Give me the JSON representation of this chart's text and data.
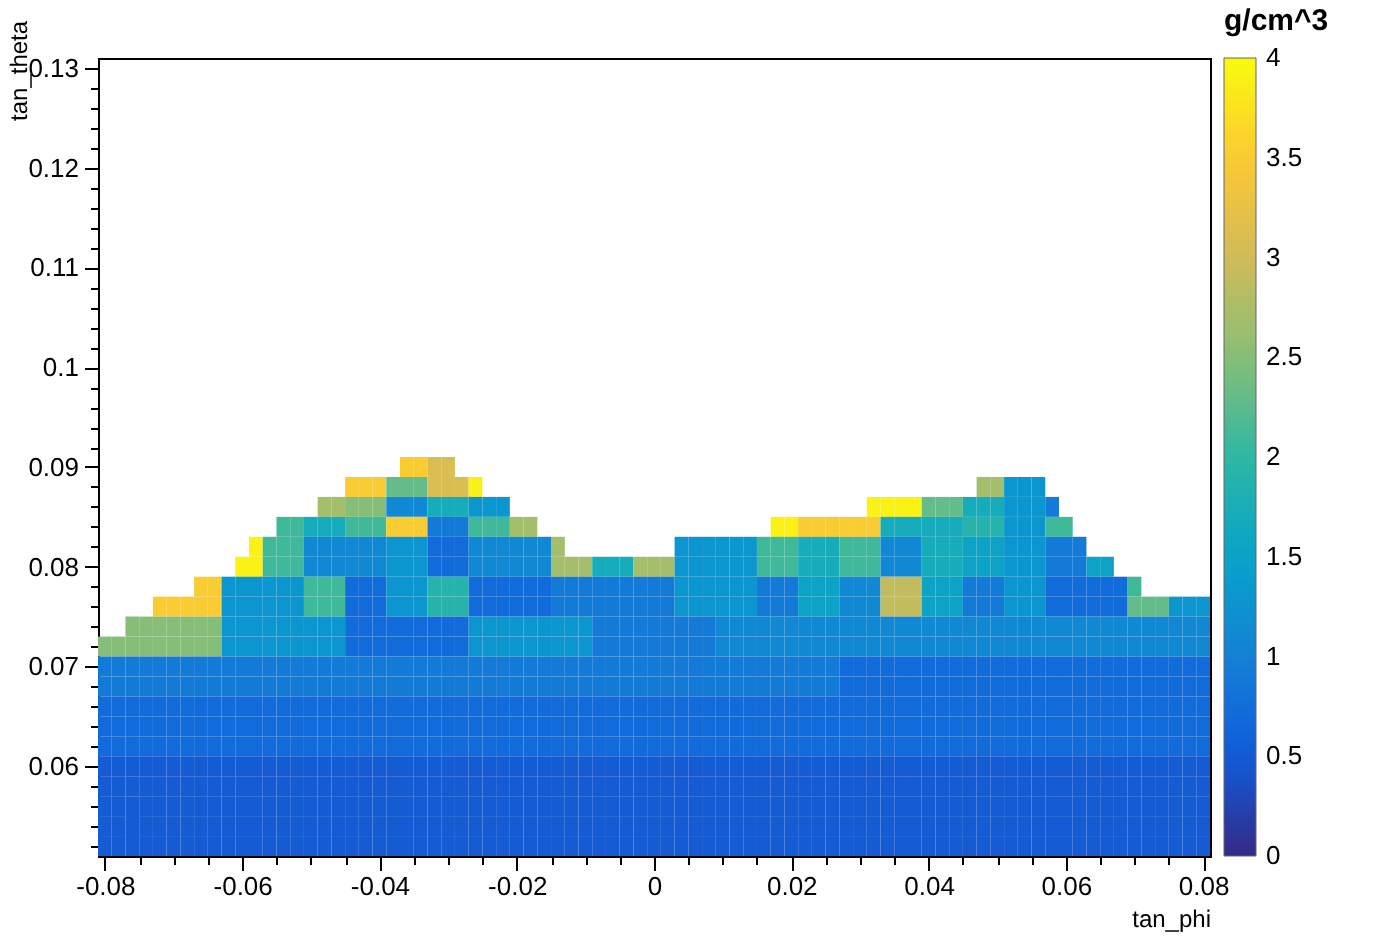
{
  "chart_data": {
    "type": "heatmap",
    "xlabel": "tan_phi",
    "ylabel": "tan_theta",
    "clabel": "g/cm^3",
    "xlim": [
      -0.081,
      0.081
    ],
    "ylim": [
      0.051,
      0.131
    ],
    "clim": [
      0,
      4
    ],
    "xticks": [
      -0.08,
      {
        "value": -0.075,
        "label": null
      },
      {
        "value": -0.07,
        "label": null
      },
      {
        "value": -0.065,
        "label": null
      },
      -0.06,
      {
        "value": -0.055,
        "label": null
      },
      {
        "value": -0.05,
        "label": null
      },
      {
        "value": -0.045,
        "label": null
      },
      -0.04,
      {
        "value": -0.035,
        "label": null
      },
      {
        "value": -0.03,
        "label": null
      },
      {
        "value": -0.025,
        "label": null
      },
      -0.02,
      {
        "value": -0.015,
        "label": null
      },
      {
        "value": -0.01,
        "label": null
      },
      {
        "value": -0.005,
        "label": null
      },
      0,
      {
        "value": 0.005,
        "label": null
      },
      {
        "value": 0.01,
        "label": null
      },
      {
        "value": 0.015,
        "label": null
      },
      0.02,
      {
        "value": 0.025,
        "label": null
      },
      {
        "value": 0.03,
        "label": null
      },
      {
        "value": 0.035,
        "label": null
      },
      0.04,
      {
        "value": 0.045,
        "label": null
      },
      {
        "value": 0.05,
        "label": null
      },
      {
        "value": 0.055,
        "label": null
      },
      0.06,
      {
        "value": 0.065,
        "label": null
      },
      {
        "value": 0.07,
        "label": null
      },
      {
        "value": 0.075,
        "label": null
      },
      0.08
    ],
    "yticks": [
      {
        "value": 0.052,
        "label": null
      },
      {
        "value": 0.054,
        "label": null
      },
      {
        "value": 0.056,
        "label": null
      },
      {
        "value": 0.058,
        "label": null
      },
      0.06,
      {
        "value": 0.062,
        "label": null
      },
      {
        "value": 0.064,
        "label": null
      },
      {
        "value": 0.066,
        "label": null
      },
      {
        "value": 0.068,
        "label": null
      },
      0.07,
      {
        "value": 0.072,
        "label": null
      },
      {
        "value": 0.074,
        "label": null
      },
      {
        "value": 0.076,
        "label": null
      },
      {
        "value": 0.078,
        "label": null
      },
      0.08,
      {
        "value": 0.082,
        "label": null
      },
      {
        "value": 0.084,
        "label": null
      },
      {
        "value": 0.086,
        "label": null
      },
      {
        "value": 0.088,
        "label": null
      },
      0.09,
      {
        "value": 0.092,
        "label": null
      },
      {
        "value": 0.094,
        "label": null
      },
      {
        "value": 0.096,
        "label": null
      },
      {
        "value": 0.098,
        "label": null
      },
      0.1,
      {
        "value": 0.102,
        "label": null
      },
      {
        "value": 0.104,
        "label": null
      },
      {
        "value": 0.106,
        "label": null
      },
      {
        "value": 0.108,
        "label": null
      },
      0.11,
      {
        "value": 0.112,
        "label": null
      },
      {
        "value": 0.114,
        "label": null
      },
      {
        "value": 0.116,
        "label": null
      },
      {
        "value": 0.118,
        "label": null
      },
      0.12,
      {
        "value": 0.122,
        "label": null
      },
      {
        "value": 0.124,
        "label": null
      },
      {
        "value": 0.126,
        "label": null
      },
      {
        "value": 0.128,
        "label": null
      },
      0.13
    ],
    "cticks": [
      0,
      0.5,
      1,
      1.5,
      2,
      2.5,
      3,
      3.5,
      4
    ],
    "x": [
      -0.08,
      -0.078,
      -0.076,
      -0.074,
      -0.072,
      -0.07,
      -0.068,
      -0.066,
      -0.064,
      -0.062,
      -0.06,
      -0.058,
      -0.056,
      -0.054,
      -0.052,
      -0.05,
      -0.048,
      -0.046,
      -0.044,
      -0.042,
      -0.04,
      -0.038,
      -0.036,
      -0.034,
      -0.032,
      -0.03,
      -0.028,
      -0.026,
      -0.024,
      -0.022,
      -0.02,
      -0.018,
      -0.016,
      -0.014,
      -0.012,
      -0.01,
      -0.008,
      -0.006,
      -0.004,
      -0.002,
      0,
      0.002,
      0.004,
      0.006,
      0.008,
      0.01,
      0.012,
      0.014,
      0.016,
      0.018,
      0.02,
      0.022,
      0.024,
      0.026,
      0.028,
      0.03,
      0.032,
      0.034,
      0.036,
      0.038,
      0.04,
      0.042,
      0.044,
      0.046,
      0.048,
      0.05,
      0.052,
      0.054,
      0.056,
      0.058,
      0.06,
      0.062,
      0.064,
      0.066,
      0.068,
      0.07,
      0.072,
      0.074,
      0.076,
      0.078,
      0.08
    ],
    "y": [
      0.09,
      0.088,
      0.086,
      0.084,
      0.082,
      0.08,
      0.078,
      0.076,
      0.074,
      0.072,
      0.07,
      0.068,
      0.066,
      0.064,
      0.062,
      0.06,
      0.058,
      0.056,
      0.054,
      0.052
    ],
    "cells": [
      [
        null,
        null,
        null,
        null,
        null,
        null,
        null,
        null,
        null,
        null,
        null,
        null,
        null,
        null,
        null,
        null,
        null,
        null,
        null,
        null,
        null,
        null,
        3.5,
        3.5,
        3.1,
        3.1,
        null,
        null,
        null,
        null,
        null,
        null,
        null,
        null,
        null,
        null,
        null,
        null,
        null,
        null,
        null,
        null,
        null,
        null,
        null,
        null,
        null,
        null,
        null,
        null,
        null,
        null,
        null,
        null,
        null,
        null,
        null,
        null,
        null,
        null,
        null,
        null,
        null,
        null,
        null,
        null,
        null,
        null,
        null,
        null,
        null,
        null,
        null,
        null,
        null,
        null,
        null,
        null,
        null,
        null,
        null
      ],
      [
        null,
        null,
        null,
        null,
        null,
        null,
        null,
        null,
        null,
        null,
        null,
        null,
        null,
        null,
        null,
        null,
        null,
        null,
        3.5,
        3.5,
        3.5,
        2.3,
        2.3,
        2.3,
        3.1,
        3.1,
        3.1,
        3.9,
        null,
        null,
        null,
        null,
        null,
        null,
        null,
        null,
        null,
        null,
        null,
        null,
        null,
        null,
        null,
        null,
        null,
        null,
        null,
        null,
        null,
        null,
        null,
        null,
        null,
        null,
        null,
        null,
        null,
        null,
        null,
        null,
        null,
        null,
        null,
        null,
        2.7,
        2.7,
        1.3,
        1.3,
        1.3,
        null,
        null,
        null,
        null,
        null,
        null,
        null,
        null,
        null,
        null,
        null,
        null
      ],
      [
        null,
        null,
        null,
        null,
        null,
        null,
        null,
        null,
        null,
        null,
        null,
        null,
        null,
        null,
        null,
        null,
        2.7,
        2.7,
        2.5,
        2.5,
        2.5,
        1.1,
        1.1,
        1.1,
        1.7,
        1.7,
        1.7,
        1.3,
        1.3,
        1.3,
        null,
        null,
        null,
        null,
        null,
        null,
        null,
        null,
        null,
        null,
        null,
        null,
        null,
        null,
        null,
        null,
        null,
        null,
        null,
        null,
        null,
        null,
        null,
        null,
        null,
        null,
        3.9,
        3.9,
        3.9,
        3.9,
        2.3,
        2.3,
        2.3,
        1.7,
        1.7,
        1.7,
        1.3,
        1.3,
        1.3,
        0.9,
        null,
        null,
        null,
        null,
        null,
        null,
        null,
        null,
        null,
        null,
        null
      ],
      [
        null,
        null,
        null,
        null,
        null,
        null,
        null,
        null,
        null,
        null,
        null,
        null,
        null,
        2.1,
        2.1,
        1.7,
        1.7,
        1.7,
        2.1,
        2.1,
        2.1,
        3.5,
        3.5,
        3.5,
        0.9,
        0.9,
        0.9,
        2.1,
        2.1,
        2.1,
        2.7,
        2.7,
        null,
        null,
        null,
        null,
        null,
        null,
        null,
        null,
        null,
        null,
        null,
        null,
        null,
        null,
        null,
        null,
        null,
        3.9,
        3.9,
        3.5,
        3.5,
        3.5,
        3.5,
        3.5,
        3.5,
        1.7,
        1.7,
        1.7,
        1.7,
        1.7,
        1.7,
        1.9,
        1.9,
        1.9,
        1.3,
        1.3,
        1.3,
        2.1,
        2.1,
        null,
        null,
        null,
        null,
        null,
        null,
        null,
        null,
        null,
        null
      ],
      [
        null,
        null,
        null,
        null,
        null,
        null,
        null,
        null,
        null,
        null,
        null,
        3.9,
        2.1,
        2.1,
        2.1,
        1.1,
        1.1,
        1.1,
        1.1,
        1.1,
        1.1,
        1.3,
        1.3,
        1.3,
        0.7,
        0.7,
        0.7,
        1.1,
        1.1,
        1.1,
        1.1,
        1.1,
        1.1,
        2.7,
        null,
        null,
        null,
        null,
        null,
        null,
        null,
        null,
        1.3,
        1.3,
        1.3,
        1.3,
        1.3,
        1.3,
        2.1,
        2.1,
        2.1,
        1.7,
        1.7,
        1.7,
        2.1,
        2.1,
        2.1,
        1.1,
        1.1,
        1.1,
        1.7,
        1.7,
        1.7,
        1.5,
        1.5,
        1.5,
        1.3,
        1.3,
        1.3,
        0.9,
        0.9,
        0.9,
        null,
        null,
        null,
        null,
        null,
        null,
        null,
        null,
        null
      ],
      [
        null,
        null,
        null,
        null,
        null,
        null,
        null,
        null,
        null,
        null,
        3.9,
        3.9,
        2.1,
        2.1,
        2.1,
        1.1,
        1.1,
        1.1,
        1.1,
        1.1,
        1.1,
        1.3,
        1.3,
        1.3,
        0.7,
        0.7,
        0.7,
        1.1,
        1.1,
        1.1,
        1.1,
        1.1,
        1.1,
        2.7,
        2.7,
        2.7,
        1.7,
        1.7,
        1.7,
        2.7,
        2.7,
        2.7,
        1.3,
        1.3,
        1.3,
        1.3,
        1.3,
        1.3,
        2.1,
        2.1,
        2.1,
        1.7,
        1.7,
        1.7,
        2.1,
        2.1,
        2.1,
        1.1,
        1.1,
        1.1,
        1.7,
        1.7,
        1.7,
        1.5,
        1.5,
        1.5,
        1.3,
        1.3,
        1.3,
        0.9,
        0.9,
        0.9,
        1.5,
        1.5,
        null,
        null,
        null,
        null,
        null,
        null,
        null
      ],
      [
        null,
        null,
        null,
        null,
        null,
        null,
        null,
        3.5,
        3.5,
        1.3,
        1.3,
        1.3,
        1.3,
        1.3,
        1.3,
        2.1,
        2.1,
        2.1,
        0.7,
        0.7,
        0.7,
        1.3,
        1.3,
        1.3,
        1.9,
        1.9,
        1.9,
        0.7,
        0.7,
        0.7,
        0.7,
        0.7,
        0.7,
        0.9,
        0.9,
        0.9,
        0.9,
        0.9,
        0.9,
        0.9,
        0.9,
        0.9,
        1.3,
        1.3,
        1.3,
        1.3,
        1.3,
        1.3,
        0.9,
        0.9,
        0.9,
        1.5,
        1.5,
        1.5,
        1.1,
        1.1,
        1.1,
        2.9,
        2.9,
        2.9,
        1.5,
        1.5,
        1.5,
        0.9,
        0.9,
        0.9,
        1.3,
        1.3,
        1.3,
        0.7,
        0.7,
        0.7,
        0.7,
        0.7,
        0.7,
        2.1,
        null,
        null,
        null,
        null,
        null
      ],
      [
        null,
        null,
        null,
        null,
        3.5,
        3.5,
        3.5,
        3.5,
        3.5,
        1.3,
        1.3,
        1.3,
        1.3,
        1.3,
        1.3,
        2.1,
        2.1,
        2.1,
        0.7,
        0.7,
        0.7,
        1.3,
        1.3,
        1.3,
        1.9,
        1.9,
        1.9,
        0.7,
        0.7,
        0.7,
        0.7,
        0.7,
        0.7,
        0.9,
        0.9,
        0.9,
        0.9,
        0.9,
        0.9,
        0.9,
        0.9,
        0.9,
        1.3,
        1.3,
        1.3,
        1.3,
        1.3,
        1.3,
        0.9,
        0.9,
        0.9,
        1.5,
        1.5,
        1.5,
        1.1,
        1.1,
        1.1,
        2.9,
        2.9,
        2.9,
        1.5,
        1.5,
        1.5,
        0.9,
        0.9,
        0.9,
        1.3,
        1.3,
        1.3,
        0.7,
        0.7,
        0.7,
        0.7,
        0.7,
        0.7,
        2.3,
        2.3,
        2.3,
        1.3,
        1.3,
        1.3
      ],
      [
        null,
        null,
        2.5,
        2.5,
        2.5,
        2.5,
        2.5,
        2.5,
        2.5,
        1.3,
        1.3,
        1.3,
        1.3,
        1.3,
        1.3,
        1.3,
        1.3,
        1.3,
        0.7,
        0.7,
        0.7,
        0.7,
        0.7,
        0.7,
        0.7,
        0.7,
        0.7,
        1.3,
        1.3,
        1.3,
        1.3,
        1.3,
        1.3,
        1.3,
        1.3,
        1.3,
        0.9,
        0.9,
        0.9,
        0.9,
        0.9,
        0.9,
        0.9,
        0.9,
        0.9,
        1.1,
        1.1,
        1.1,
        1.1,
        1.1,
        1.1,
        1.1,
        1.1,
        1.1,
        1.1,
        1.1,
        1.1,
        1.1,
        1.1,
        1.1,
        1.1,
        1.1,
        1.1,
        1.1,
        1.1,
        1.1,
        1.1,
        1.1,
        1.1,
        1.1,
        1.1,
        1.1,
        1.1,
        1.1,
        1.1,
        1.1,
        1.1,
        1.1,
        1.1,
        1.1,
        1.1
      ],
      [
        2.5,
        2.5,
        2.5,
        2.5,
        2.5,
        2.5,
        2.5,
        2.5,
        2.5,
        1.3,
        1.3,
        1.3,
        1.3,
        1.3,
        1.3,
        1.3,
        1.3,
        1.3,
        0.7,
        0.7,
        0.7,
        0.7,
        0.7,
        0.7,
        0.7,
        0.7,
        0.7,
        1.3,
        1.3,
        1.3,
        1.3,
        1.3,
        1.3,
        1.3,
        1.3,
        1.3,
        0.9,
        0.9,
        0.9,
        0.9,
        0.9,
        0.9,
        0.9,
        0.9,
        0.9,
        1.1,
        1.1,
        1.1,
        1.1,
        1.1,
        1.1,
        1.1,
        1.1,
        1.1,
        1.1,
        1.1,
        1.1,
        1.1,
        1.1,
        1.1,
        1.1,
        1.1,
        1.1,
        1.1,
        1.1,
        1.1,
        1.1,
        1.1,
        1.1,
        1.1,
        1.1,
        1.1,
        1.1,
        1.1,
        1.1,
        1.1,
        1.1,
        1.1,
        1.1,
        1.1,
        1.1
      ],
      [
        0.9,
        0.9,
        0.9,
        0.9,
        0.9,
        0.9,
        0.9,
        0.9,
        0.9,
        0.9,
        0.9,
        0.9,
        0.9,
        0.9,
        0.9,
        0.9,
        0.9,
        0.9,
        0.9,
        0.9,
        0.9,
        0.9,
        0.9,
        0.9,
        0.9,
        0.9,
        0.9,
        0.9,
        0.9,
        0.9,
        0.9,
        0.9,
        0.9,
        0.9,
        0.9,
        0.9,
        0.9,
        0.9,
        0.9,
        0.9,
        0.9,
        0.9,
        0.9,
        0.9,
        0.9,
        0.9,
        0.9,
        0.9,
        0.9,
        0.9,
        0.9,
        0.9,
        0.9,
        0.9,
        0.7,
        0.7,
        0.7,
        0.7,
        0.7,
        0.7,
        0.7,
        0.7,
        0.7,
        0.7,
        0.7,
        0.7,
        0.7,
        0.7,
        0.7,
        0.7,
        0.7,
        0.7,
        0.7,
        0.7,
        0.7,
        0.7,
        0.7,
        0.7,
        0.7,
        0.7,
        0.7
      ],
      [
        0.9,
        0.9,
        0.9,
        0.9,
        0.9,
        0.9,
        0.9,
        0.9,
        0.9,
        0.9,
        0.9,
        0.9,
        0.9,
        0.9,
        0.9,
        0.9,
        0.9,
        0.9,
        0.9,
        0.9,
        0.9,
        0.9,
        0.9,
        0.9,
        0.9,
        0.9,
        0.9,
        0.9,
        0.9,
        0.9,
        0.9,
        0.9,
        0.9,
        0.9,
        0.9,
        0.9,
        0.9,
        0.9,
        0.9,
        0.9,
        0.9,
        0.9,
        0.9,
        0.9,
        0.9,
        0.9,
        0.9,
        0.9,
        0.9,
        0.9,
        0.9,
        0.9,
        0.9,
        0.9,
        0.7,
        0.7,
        0.7,
        0.7,
        0.7,
        0.7,
        0.7,
        0.7,
        0.7,
        0.7,
        0.7,
        0.7,
        0.7,
        0.7,
        0.7,
        0.7,
        0.7,
        0.7,
        0.7,
        0.7,
        0.7,
        0.7,
        0.7,
        0.7,
        0.7,
        0.7,
        0.7
      ],
      [
        0.7,
        0.7,
        0.7,
        0.7,
        0.7,
        0.7,
        0.7,
        0.7,
        0.7,
        0.7,
        0.7,
        0.7,
        0.7,
        0.7,
        0.7,
        0.7,
        0.7,
        0.7,
        0.7,
        0.7,
        0.7,
        0.7,
        0.7,
        0.7,
        0.7,
        0.7,
        0.7,
        0.7,
        0.7,
        0.7,
        0.7,
        0.7,
        0.7,
        0.7,
        0.7,
        0.7,
        0.7,
        0.7,
        0.7,
        0.7,
        0.7,
        0.7,
        0.7,
        0.7,
        0.7,
        0.7,
        0.7,
        0.7,
        0.7,
        0.7,
        0.7,
        0.7,
        0.7,
        0.7,
        0.7,
        0.7,
        0.7,
        0.7,
        0.7,
        0.7,
        0.7,
        0.7,
        0.7,
        0.7,
        0.7,
        0.7,
        0.7,
        0.7,
        0.7,
        0.7,
        0.7,
        0.7,
        0.7,
        0.7,
        0.7,
        0.7,
        0.7,
        0.7,
        0.7,
        0.7,
        0.7
      ],
      [
        0.7,
        0.7,
        0.7,
        0.7,
        0.7,
        0.7,
        0.7,
        0.7,
        0.7,
        0.7,
        0.7,
        0.7,
        0.7,
        0.7,
        0.7,
        0.7,
        0.7,
        0.7,
        0.7,
        0.7,
        0.7,
        0.7,
        0.7,
        0.7,
        0.7,
        0.7,
        0.7,
        0.7,
        0.7,
        0.7,
        0.7,
        0.7,
        0.7,
        0.7,
        0.7,
        0.7,
        0.7,
        0.7,
        0.7,
        0.7,
        0.7,
        0.7,
        0.7,
        0.7,
        0.7,
        0.7,
        0.7,
        0.7,
        0.7,
        0.7,
        0.7,
        0.7,
        0.7,
        0.7,
        0.7,
        0.7,
        0.7,
        0.7,
        0.7,
        0.7,
        0.7,
        0.7,
        0.7,
        0.7,
        0.7,
        0.7,
        0.7,
        0.7,
        0.7,
        0.7,
        0.7,
        0.7,
        0.7,
        0.7,
        0.7,
        0.7,
        0.7,
        0.7,
        0.7,
        0.7,
        0.7
      ],
      [
        0.7,
        0.7,
        0.7,
        0.7,
        0.7,
        0.7,
        0.7,
        0.7,
        0.7,
        0.7,
        0.7,
        0.7,
        0.7,
        0.7,
        0.7,
        0.7,
        0.7,
        0.7,
        0.7,
        0.7,
        0.7,
        0.7,
        0.7,
        0.7,
        0.7,
        0.7,
        0.7,
        0.7,
        0.7,
        0.7,
        0.7,
        0.7,
        0.7,
        0.7,
        0.7,
        0.7,
        0.7,
        0.7,
        0.7,
        0.7,
        0.7,
        0.7,
        0.7,
        0.7,
        0.7,
        0.7,
        0.7,
        0.7,
        0.7,
        0.7,
        0.7,
        0.7,
        0.7,
        0.7,
        0.7,
        0.7,
        0.7,
        0.7,
        0.7,
        0.7,
        0.7,
        0.7,
        0.7,
        0.7,
        0.7,
        0.7,
        0.7,
        0.7,
        0.7,
        0.7,
        0.7,
        0.7,
        0.7,
        0.7,
        0.7,
        0.7,
        0.7,
        0.7,
        0.7,
        0.7,
        0.7
      ],
      [
        0.5,
        0.5,
        0.5,
        0.5,
        0.5,
        0.5,
        0.5,
        0.5,
        0.5,
        0.5,
        0.5,
        0.5,
        0.5,
        0.5,
        0.5,
        0.5,
        0.5,
        0.5,
        0.5,
        0.5,
        0.5,
        0.5,
        0.5,
        0.5,
        0.5,
        0.5,
        0.5,
        0.5,
        0.5,
        0.5,
        0.5,
        0.5,
        0.5,
        0.5,
        0.5,
        0.5,
        0.5,
        0.5,
        0.5,
        0.5,
        0.5,
        0.5,
        0.5,
        0.5,
        0.5,
        0.5,
        0.5,
        0.5,
        0.5,
        0.5,
        0.5,
        0.5,
        0.5,
        0.5,
        0.5,
        0.5,
        0.5,
        0.5,
        0.5,
        0.5,
        0.5,
        0.5,
        0.5,
        0.5,
        0.5,
        0.5,
        0.5,
        0.5,
        0.5,
        0.5,
        0.5,
        0.5,
        0.5,
        0.5,
        0.5,
        0.5,
        0.5,
        0.5,
        0.5,
        0.5,
        0.5
      ],
      [
        0.5,
        0.5,
        0.5,
        0.5,
        0.5,
        0.5,
        0.5,
        0.5,
        0.5,
        0.5,
        0.5,
        0.5,
        0.5,
        0.5,
        0.5,
        0.5,
        0.5,
        0.5,
        0.5,
        0.5,
        0.5,
        0.5,
        0.5,
        0.5,
        0.5,
        0.5,
        0.5,
        0.5,
        0.5,
        0.5,
        0.5,
        0.5,
        0.5,
        0.5,
        0.5,
        0.5,
        0.5,
        0.5,
        0.5,
        0.5,
        0.5,
        0.5,
        0.5,
        0.5,
        0.5,
        0.5,
        0.5,
        0.5,
        0.5,
        0.5,
        0.5,
        0.5,
        0.5,
        0.5,
        0.5,
        0.5,
        0.5,
        0.5,
        0.5,
        0.5,
        0.5,
        0.5,
        0.5,
        0.5,
        0.5,
        0.5,
        0.5,
        0.5,
        0.5,
        0.5,
        0.5,
        0.5,
        0.5,
        0.5,
        0.5,
        0.5,
        0.5,
        0.5,
        0.5,
        0.5,
        0.5
      ],
      [
        0.5,
        0.5,
        0.5,
        0.5,
        0.5,
        0.5,
        0.5,
        0.5,
        0.5,
        0.5,
        0.5,
        0.5,
        0.5,
        0.5,
        0.5,
        0.5,
        0.5,
        0.5,
        0.5,
        0.5,
        0.5,
        0.5,
        0.5,
        0.5,
        0.5,
        0.5,
        0.5,
        0.5,
        0.5,
        0.5,
        0.5,
        0.5,
        0.5,
        0.5,
        0.5,
        0.5,
        0.5,
        0.5,
        0.5,
        0.5,
        0.5,
        0.5,
        0.5,
        0.5,
        0.5,
        0.5,
        0.5,
        0.5,
        0.5,
        0.5,
        0.5,
        0.5,
        0.5,
        0.5,
        0.5,
        0.5,
        0.5,
        0.5,
        0.5,
        0.5,
        0.5,
        0.5,
        0.5,
        0.5,
        0.5,
        0.5,
        0.5,
        0.5,
        0.5,
        0.5,
        0.5,
        0.5,
        0.5,
        0.5,
        0.5,
        0.5,
        0.5,
        0.5,
        0.5,
        0.5,
        0.5
      ],
      [
        0.5,
        0.5,
        0.5,
        0.5,
        0.5,
        0.5,
        0.5,
        0.5,
        0.5,
        0.5,
        0.5,
        0.5,
        0.5,
        0.5,
        0.5,
        0.5,
        0.5,
        0.5,
        0.5,
        0.5,
        0.5,
        0.5,
        0.5,
        0.5,
        0.5,
        0.5,
        0.5,
        0.5,
        0.5,
        0.5,
        0.5,
        0.5,
        0.5,
        0.5,
        0.5,
        0.5,
        0.5,
        0.5,
        0.5,
        0.5,
        0.5,
        0.5,
        0.5,
        0.5,
        0.5,
        0.5,
        0.5,
        0.5,
        0.5,
        0.5,
        0.5,
        0.5,
        0.5,
        0.5,
        0.5,
        0.5,
        0.5,
        0.5,
        0.5,
        0.5,
        0.5,
        0.5,
        0.5,
        0.5,
        0.5,
        0.5,
        0.5,
        0.5,
        0.5,
        0.5,
        0.5,
        0.5,
        0.5,
        0.5,
        0.5,
        0.5,
        0.5,
        0.5,
        0.5,
        0.5,
        0.5
      ],
      [
        0.5,
        0.5,
        0.5,
        0.5,
        0.5,
        0.5,
        0.5,
        0.5,
        0.5,
        0.5,
        0.5,
        0.5,
        0.5,
        0.5,
        0.5,
        0.5,
        0.5,
        0.5,
        0.5,
        0.5,
        0.5,
        0.5,
        0.5,
        0.5,
        0.5,
        0.5,
        0.5,
        0.5,
        0.5,
        0.5,
        0.5,
        0.5,
        0.5,
        0.5,
        0.5,
        0.5,
        0.5,
        0.5,
        0.5,
        0.5,
        0.5,
        0.5,
        0.5,
        0.5,
        0.5,
        0.5,
        0.5,
        0.5,
        0.5,
        0.5,
        0.5,
        0.5,
        0.5,
        0.5,
        0.5,
        0.5,
        0.5,
        0.5,
        0.5,
        0.5,
        0.5,
        0.5,
        0.5,
        0.5,
        0.5,
        0.5,
        0.5,
        0.5,
        0.5,
        0.5,
        0.5,
        0.5,
        0.5,
        0.5,
        0.5,
        0.5,
        0.5,
        0.5,
        0.5,
        0.5,
        0.5
      ]
    ]
  }
}
